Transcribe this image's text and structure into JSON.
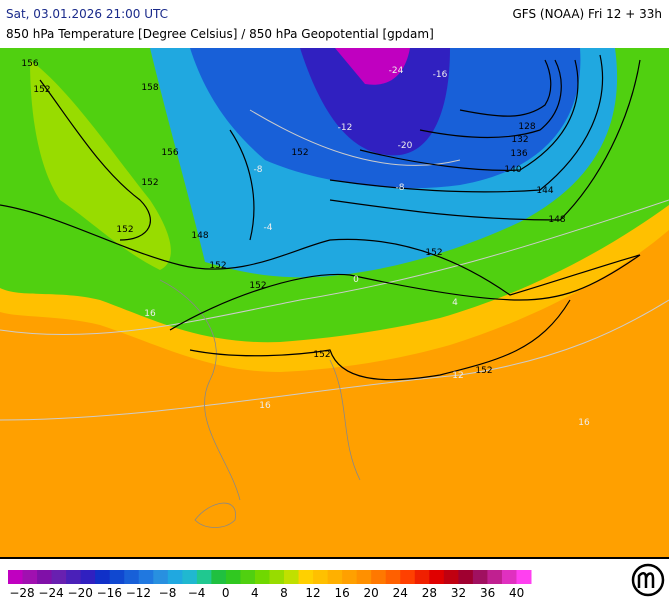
{
  "header": {
    "date": "Sat, 03.01.2026 21:00 UTC",
    "model": "GFS (NOAA) Fri 12 + 33h",
    "subtitle": "850 hPa Temperature [Degree Celsius] / 850 hPa Geopotential [gpdam]"
  },
  "map": {
    "contour_labels": [
      "156",
      "152",
      "158",
      "156",
      "152",
      "152",
      "148",
      "152",
      "152",
      "152",
      "152",
      "152",
      "152",
      "148",
      "144",
      "140",
      "136",
      "132",
      "128",
      "-24",
      "-20",
      "-16",
      "-12",
      "-8",
      "-8",
      "-4",
      "0",
      "4",
      "12",
      "16",
      "16",
      "16"
    ]
  },
  "colorbar": {
    "labels": [
      "−28",
      "−24",
      "−20",
      "−16",
      "−12",
      "−8",
      "−4",
      "0",
      "4",
      "8",
      "12",
      "16",
      "20",
      "24",
      "28",
      "32",
      "36",
      "40"
    ],
    "colors": [
      "#c000c0",
      "#a010b0",
      "#8010a8",
      "#6820b0",
      "#4a20b8",
      "#3020c0",
      "#1030c8",
      "#1048d0",
      "#1860d8",
      "#2078e0",
      "#2890e0",
      "#20a8e0",
      "#20b8d0",
      "#20c890",
      "#20c040",
      "#30c820",
      "#50d010",
      "#70d800",
      "#98dc00",
      "#c0e000",
      "#ffd000",
      "#ffc000",
      "#ffb000",
      "#ffa000",
      "#ff9000",
      "#ff7800",
      "#ff6000",
      "#ff4000",
      "#f02000",
      "#e00000",
      "#c00010",
      "#a00030",
      "#a01060",
      "#c02090",
      "#e030c0",
      "#ff40f0"
    ]
  }
}
